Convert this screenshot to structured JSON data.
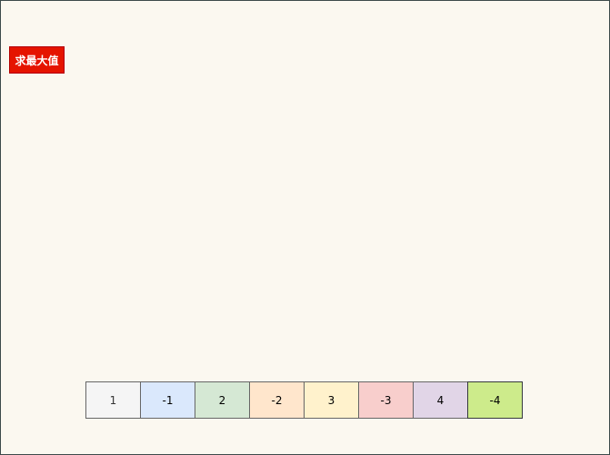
{
  "button": {
    "label": "求最大值",
    "color": "#e51400"
  },
  "cells": [
    {
      "value": "1",
      "fill": "#f5f5f5",
      "stroke": "#666666"
    },
    {
      "value": "-1",
      "fill": "#dae8fc",
      "stroke": "#666666"
    },
    {
      "value": "2",
      "fill": "#d5e8d4",
      "stroke": "#666666"
    },
    {
      "value": "-2",
      "fill": "#ffe6cc",
      "stroke": "#666666"
    },
    {
      "value": "3",
      "fill": "#fff2cc",
      "stroke": "#666666"
    },
    {
      "value": "-3",
      "fill": "#f8cecc",
      "stroke": "#666666"
    },
    {
      "value": "4",
      "fill": "#e1d5e7",
      "stroke": "#666666"
    },
    {
      "value": "-4",
      "fill": "#cdeb8b",
      "stroke": "#36393d"
    }
  ]
}
